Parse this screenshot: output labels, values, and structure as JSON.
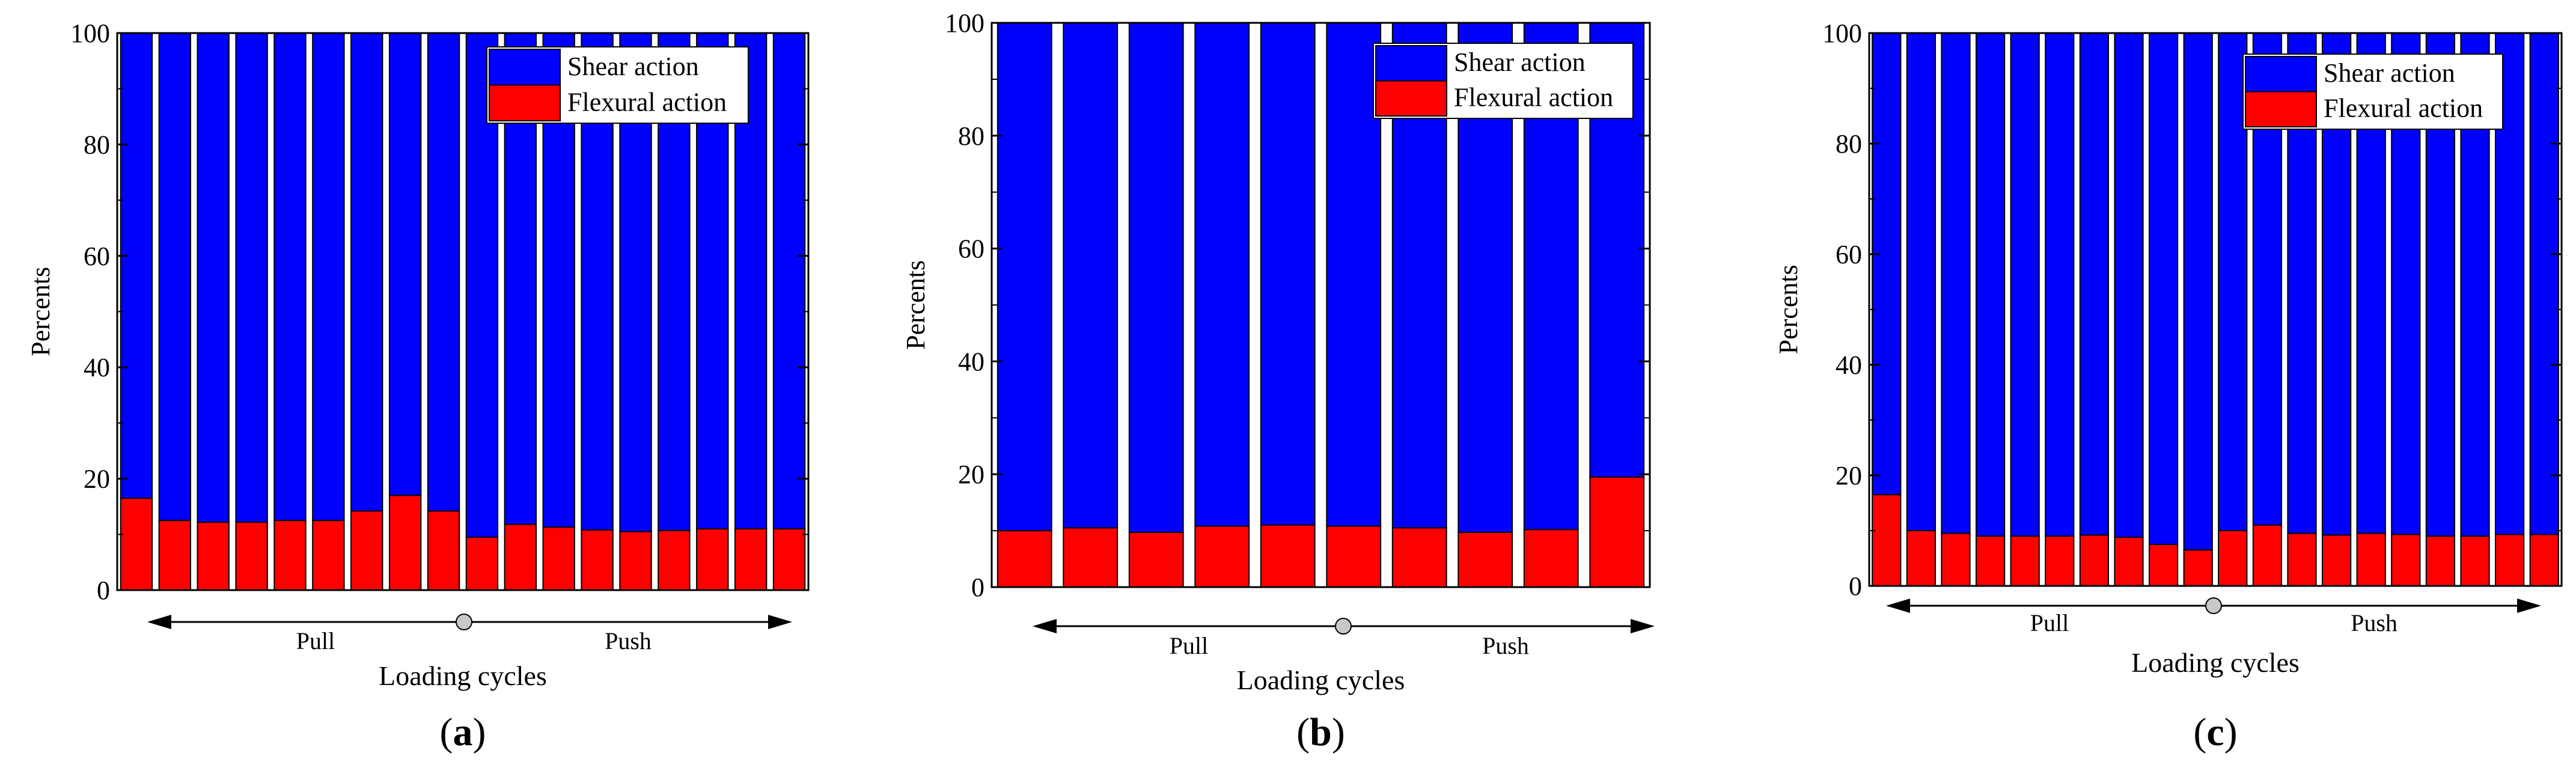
{
  "chart_data": [
    {
      "type": "bar",
      "stacked": true,
      "panel_label": "a",
      "xlabel": "Loading cycles",
      "ylabel": "Percents",
      "ylim": [
        0,
        100
      ],
      "yticks": [
        0,
        20,
        40,
        60,
        80,
        100
      ],
      "direction_labels": [
        "Pull",
        "Push"
      ],
      "legend": [
        "Shear action",
        "Flexural action"
      ],
      "legend_position": "top-right",
      "series": [
        {
          "name": "Flexural action",
          "values": [
            16.5,
            12.5,
            12.2,
            12.2,
            12.5,
            12.5,
            14.2,
            17.0,
            14.2,
            9.5,
            11.8,
            11.3,
            10.8,
            10.5,
            10.7,
            11.0,
            11.0,
            11.0
          ]
        },
        {
          "name": "Shear action",
          "values": [
            83.5,
            87.5,
            87.8,
            87.8,
            87.5,
            87.5,
            85.8,
            83.0,
            85.8,
            90.5,
            88.2,
            88.7,
            89.2,
            89.5,
            89.3,
            89.0,
            89.0,
            89.0
          ]
        }
      ]
    },
    {
      "type": "bar",
      "stacked": true,
      "panel_label": "b",
      "xlabel": "Loading cycles",
      "ylabel": "Percents",
      "ylim": [
        0,
        100
      ],
      "yticks": [
        0,
        20,
        40,
        60,
        80,
        100
      ],
      "direction_labels": [
        "Pull",
        "Push"
      ],
      "legend": [
        "Shear action",
        "Flexural action"
      ],
      "legend_position": "top-right",
      "series": [
        {
          "name": "Flexural action",
          "values": [
            10.0,
            10.5,
            9.7,
            10.8,
            11.0,
            10.8,
            10.5,
            9.7,
            10.2,
            19.5
          ]
        },
        {
          "name": "Shear action",
          "values": [
            90.0,
            89.5,
            90.3,
            89.2,
            89.0,
            89.2,
            89.5,
            90.3,
            89.8,
            80.5
          ]
        }
      ]
    },
    {
      "type": "bar",
      "stacked": true,
      "panel_label": "c",
      "xlabel": "Loading cycles",
      "ylabel": "Percents",
      "ylim": [
        0,
        100
      ],
      "yticks": [
        0,
        20,
        40,
        60,
        80,
        100
      ],
      "direction_labels": [
        "Pull",
        "Push"
      ],
      "legend": [
        "Shear action",
        "Flexural action"
      ],
      "legend_position": "top-right",
      "series": [
        {
          "name": "Flexural action",
          "values": [
            16.5,
            10.0,
            9.5,
            9.0,
            9.0,
            9.0,
            9.2,
            8.8,
            7.5,
            6.5,
            10.0,
            11.0,
            9.5,
            9.2,
            9.5,
            9.3,
            9.0,
            9.0,
            9.3,
            9.3
          ]
        },
        {
          "name": "Shear action",
          "values": [
            83.5,
            90.0,
            90.5,
            91.0,
            91.0,
            91.0,
            90.8,
            91.2,
            92.5,
            93.5,
            90.0,
            89.0,
            90.5,
            90.8,
            90.5,
            90.7,
            91.0,
            91.0,
            90.7,
            90.7
          ]
        }
      ]
    }
  ],
  "colors": {
    "shear": "#0000FF",
    "flexural": "#FF0000",
    "axis": "#000000",
    "marker": "#c8c8c8"
  }
}
